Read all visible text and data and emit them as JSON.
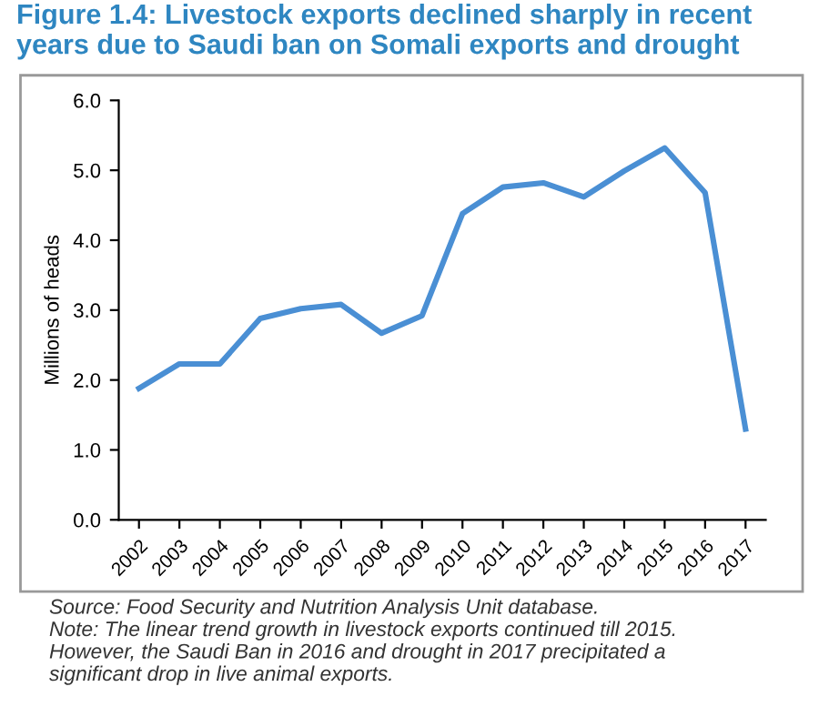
{
  "chart_data": {
    "type": "line",
    "title": "Figure 1.4: Livestock exports declined sharply in recent years due to Saudi ban on Somali exports and drought",
    "ylabel": "Millions of heads",
    "categories": [
      "2002",
      "2003",
      "2004",
      "2005",
      "2006",
      "2007",
      "2008",
      "2009",
      "2010",
      "2011",
      "2012",
      "2013",
      "2014",
      "2015",
      "2016",
      "2017"
    ],
    "series": [
      {
        "color": "#4a8fd4",
        "values": [
          1.88,
          2.23,
          2.23,
          2.88,
          3.02,
          3.08,
          2.67,
          2.92,
          4.38,
          4.76,
          4.82,
          4.62,
          4.99,
          5.32,
          4.68,
          1.3
        ]
      }
    ],
    "ylim": [
      0,
      6
    ],
    "yticks": [
      {
        "value": 0,
        "label": "0.0"
      },
      {
        "value": 1,
        "label": "1.0"
      },
      {
        "value": 2,
        "label": "2.0"
      },
      {
        "value": 3,
        "label": "3.0"
      },
      {
        "value": 4,
        "label": "4.0"
      },
      {
        "value": 5,
        "label": "5.0"
      },
      {
        "value": 6,
        "label": "6.0"
      }
    ],
    "grid": false,
    "legend": false,
    "marker": "none",
    "line_style": "solid",
    "annotations": [
      "Source: Food Security and Nutrition Analysis Unit database.\nNote: The linear trend growth in livestock exports continued till 2015.\nHowever, the Saudi Ban in 2016 and drought in 2017 precipitated a\nsignificant drop in live animal exports."
    ]
  }
}
